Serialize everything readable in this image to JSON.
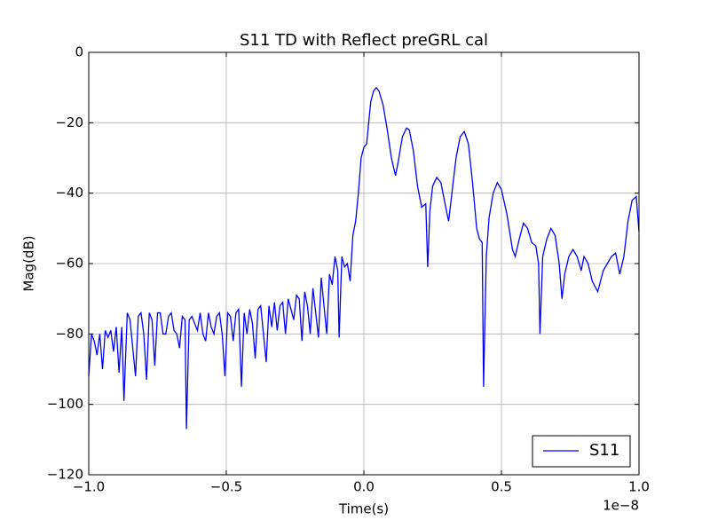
{
  "chart_data": {
    "type": "line",
    "title": "S11 TD with Reflect preGRL cal",
    "x_label": "Time(s)",
    "y_label": "Mag(dB)",
    "x_offset_label": "1e−8",
    "xlim": [
      -1.0,
      1.0
    ],
    "ylim": [
      -120,
      0
    ],
    "xticks": [
      {
        "value": -1.0,
        "label": "−1.0"
      },
      {
        "value": -0.5,
        "label": "−0.5"
      },
      {
        "value": 0.0,
        "label": "0.0"
      },
      {
        "value": 0.5,
        "label": "0.5"
      },
      {
        "value": 1.0,
        "label": "1.0"
      }
    ],
    "yticks": [
      {
        "value": -120,
        "label": "−120"
      },
      {
        "value": -100,
        "label": "−100"
      },
      {
        "value": -80,
        "label": "−80"
      },
      {
        "value": -60,
        "label": "−60"
      },
      {
        "value": -40,
        "label": "−40"
      },
      {
        "value": -20,
        "label": "−20"
      },
      0
    ],
    "grid": true,
    "legend": "lower right",
    "x": [
      -1.0,
      -0.99,
      -0.98,
      -0.97,
      -0.96,
      -0.95,
      -0.94,
      -0.93,
      -0.92,
      -0.91,
      -0.9,
      -0.89,
      -0.88,
      -0.872,
      -0.86,
      -0.85,
      -0.84,
      -0.83,
      -0.82,
      -0.81,
      -0.8,
      -0.79,
      -0.78,
      -0.77,
      -0.76,
      -0.75,
      -0.74,
      -0.73,
      -0.72,
      -0.71,
      -0.7,
      -0.69,
      -0.68,
      -0.67,
      -0.66,
      -0.65,
      -0.645,
      -0.635,
      -0.625,
      -0.615,
      -0.605,
      -0.595,
      -0.585,
      -0.575,
      -0.565,
      -0.555,
      -0.545,
      -0.535,
      -0.525,
      -0.515,
      -0.505,
      -0.495,
      -0.485,
      -0.475,
      -0.465,
      -0.455,
      -0.445,
      -0.435,
      -0.425,
      -0.415,
      -0.405,
      -0.395,
      -0.385,
      -0.375,
      -0.365,
      -0.355,
      -0.345,
      -0.335,
      -0.325,
      -0.315,
      -0.305,
      -0.295,
      -0.285,
      -0.275,
      -0.265,
      -0.255,
      -0.245,
      -0.235,
      -0.225,
      -0.215,
      -0.205,
      -0.195,
      -0.185,
      -0.175,
      -0.165,
      -0.155,
      -0.145,
      -0.135,
      -0.125,
      -0.115,
      -0.105,
      -0.095,
      -0.09,
      -0.08,
      -0.07,
      -0.06,
      -0.05,
      -0.04,
      -0.03,
      -0.02,
      -0.01,
      0.0,
      0.01,
      0.015,
      0.025,
      0.035,
      0.045,
      0.055,
      0.07,
      0.085,
      0.1,
      0.115,
      0.125,
      0.14,
      0.155,
      0.165,
      0.18,
      0.195,
      0.21,
      0.225,
      0.232,
      0.24,
      0.25,
      0.265,
      0.28,
      0.295,
      0.308,
      0.32,
      0.335,
      0.35,
      0.365,
      0.38,
      0.395,
      0.41,
      0.42,
      0.43,
      0.435,
      0.445,
      0.455,
      0.47,
      0.485,
      0.5,
      0.52,
      0.54,
      0.55,
      0.565,
      0.58,
      0.595,
      0.61,
      0.625,
      0.635,
      0.64,
      0.65,
      0.665,
      0.68,
      0.695,
      0.71,
      0.72,
      0.73,
      0.745,
      0.76,
      0.775,
      0.79,
      0.8,
      0.815,
      0.83,
      0.85,
      0.87,
      0.885,
      0.9,
      0.915,
      0.93,
      0.945,
      0.96,
      0.975,
      0.99,
      1.0
    ],
    "series": [
      {
        "name": "S11",
        "color": "#0000ff",
        "values": [
          -92,
          -80,
          -82,
          -86,
          -80,
          -90,
          -79,
          -81,
          -79,
          -85,
          -78,
          -91,
          -78,
          -99,
          -74,
          -76,
          -84,
          -92,
          -75,
          -74,
          -80,
          -93,
          -74,
          -76,
          -89,
          -74,
          -74,
          -80,
          -80,
          -75,
          -74,
          -79,
          -80,
          -84,
          -75,
          -76,
          -107,
          -76,
          -75,
          -77,
          -79,
          -74,
          -80,
          -82,
          -74,
          -78,
          -80,
          -75,
          -74,
          -80,
          -92,
          -74,
          -75,
          -82,
          -74,
          -73,
          -95,
          -74,
          -80,
          -73,
          -77,
          -87,
          -73,
          -72,
          -80,
          -88,
          -72,
          -78,
          -71,
          -79,
          -72,
          -71,
          -80,
          -70,
          -73,
          -76,
          -69,
          -70,
          -82,
          -68,
          -72,
          -80,
          -67,
          -74,
          -81,
          -64,
          -72,
          -80,
          -63,
          -66,
          -58,
          -62,
          -81,
          -58,
          -61,
          -60,
          -65,
          -52,
          -48,
          -40,
          -30,
          -27,
          -26,
          -22,
          -14,
          -11,
          -10,
          -11,
          -15,
          -22,
          -30,
          -35,
          -31,
          -24,
          -21.5,
          -22,
          -28,
          -38,
          -44,
          -43,
          -61,
          -45,
          -38,
          -35.5,
          -37,
          -43,
          -48,
          -40,
          -30,
          -24,
          -22.5,
          -26,
          -37,
          -50,
          -53,
          -54,
          -95,
          -58,
          -47,
          -40,
          -37,
          -39,
          -46,
          -56,
          -58,
          -53,
          -48.5,
          -50,
          -54,
          -55,
          -60,
          -80,
          -58,
          -53,
          -50,
          -52,
          -60,
          -70,
          -63,
          -58,
          -56,
          -58,
          -62,
          -58,
          -60,
          -65,
          -68,
          -62,
          -60,
          -58,
          -57,
          -63,
          -58,
          -48,
          -42,
          -41,
          -51
        ]
      }
    ]
  }
}
